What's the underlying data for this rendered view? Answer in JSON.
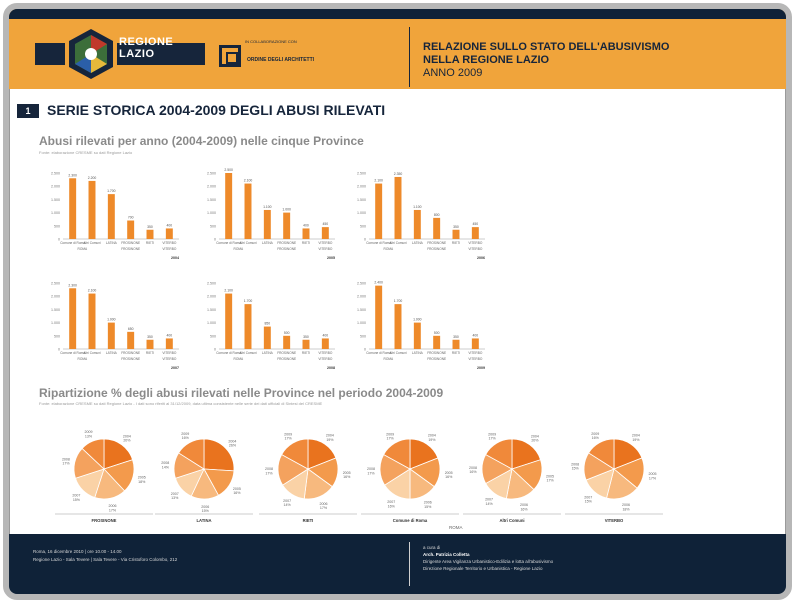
{
  "header": {
    "logo_text_line1": "REGIONE",
    "logo_text_line2": "LAZIO",
    "partner_logo_small": "IN COLLABORAZIONE CON",
    "partner_logo_name": "ORDINE DEGLI ARCHITETTI",
    "title_line1": "RELAZIONE SULLO STATO DELL'ABUSIVISMO",
    "title_line2": "NELLA REGIONE LAZIO",
    "year": "ANNO 2009"
  },
  "section": {
    "number": "1",
    "title": "SERIE STORICA 2004-2009 DEGLI ABUSI RILEVATI",
    "subtitle1": "Abusi rilevati per anno (2004-2009) nelle cinque Province",
    "source1": "Fonte: elaborazione CRESME su dati Regione Lazio",
    "subtitle2": "Ripartizione % degli abusi rilevati nelle Province nel periodo 2004-2009",
    "source2": "Fonte: elaborazione CRESME su dati Regione Lazio - I dati sono riferiti al 31/12/2009, data ultima consistente nelle serie dei dati ufficiali di Sintesi del CRESME"
  },
  "colors": {
    "accent": "#f0a43b",
    "bar": "#ee8a2a",
    "navy": "#0f2238",
    "pie": [
      "#e9731e",
      "#f39a4c",
      "#f7b97e",
      "#fad2a6",
      "#f4a25e",
      "#f0893a"
    ]
  },
  "chart_data": [
    {
      "type": "bar",
      "year": "2004",
      "categories": [
        "Comune di Roma",
        "Altri Comuni",
        "LATINA",
        "FROSINONE",
        "RIETI",
        "VITERBO"
      ],
      "values": [
        2300,
        2200,
        1700,
        700,
        350,
        400
      ],
      "ylim": [
        0,
        2500
      ],
      "group_labels": [
        "ROMA",
        "FROSINONE",
        "VITERBO"
      ]
    },
    {
      "type": "bar",
      "year": "2005",
      "categories": [
        "Comune di Roma",
        "Altri Comuni",
        "LATINA",
        "FROSINONE",
        "RIETI",
        "VITERBO"
      ],
      "values": [
        2500,
        2100,
        1100,
        1000,
        400,
        450
      ],
      "ylim": [
        0,
        2500
      ],
      "group_labels": [
        "ROMA",
        "FROSINONE",
        "VITERBO"
      ]
    },
    {
      "type": "bar",
      "year": "2006",
      "categories": [
        "Comune di Roma",
        "Altri Comuni",
        "LATINA",
        "FROSINONE",
        "RIETI",
        "VITERBO"
      ],
      "values": [
        2100,
        2350,
        1100,
        800,
        350,
        450
      ],
      "ylim": [
        0,
        2500
      ],
      "group_labels": [
        "ROMA",
        "FROSINONE",
        "VITERBO"
      ]
    },
    {
      "type": "bar",
      "year": "2007",
      "categories": [
        "Comune di Roma",
        "Altri Comuni",
        "LATINA",
        "FROSINONE",
        "RIETI",
        "VITERBO"
      ],
      "values": [
        2300,
        2100,
        1000,
        650,
        350,
        400
      ],
      "ylim": [
        0,
        2500
      ],
      "group_labels": [
        "ROMA",
        "FROSINONE",
        "VITERBO"
      ]
    },
    {
      "type": "bar",
      "year": "2008",
      "categories": [
        "Comune di Roma",
        "Altri Comuni",
        "LATINA",
        "FROSINONE",
        "RIETI",
        "VITERBO"
      ],
      "values": [
        2100,
        1700,
        850,
        500,
        350,
        400
      ],
      "ylim": [
        0,
        2500
      ],
      "group_labels": [
        "ROMA",
        "FROSINONE",
        "VITERBO"
      ]
    },
    {
      "type": "bar",
      "year": "2009",
      "categories": [
        "Comune di Roma",
        "Altri Comuni",
        "LATINA",
        "FROSINONE",
        "RIETI",
        "VITERBO"
      ],
      "values": [
        2400,
        1700,
        1000,
        500,
        350,
        400
      ],
      "ylim": [
        0,
        2500
      ],
      "group_labels": [
        "ROMA",
        "FROSINONE",
        "VITERBO"
      ]
    },
    {
      "type": "pie",
      "title": "FROSINONE",
      "categories": [
        "2004",
        "2005",
        "2006",
        "2007",
        "2008",
        "2009"
      ],
      "values": [
        20,
        18,
        17,
        15,
        17,
        13
      ]
    },
    {
      "type": "pie",
      "title": "LATINA",
      "categories": [
        "2004",
        "2005",
        "2006",
        "2007",
        "2008",
        "2009"
      ],
      "values": [
        26,
        16,
        15,
        13,
        14,
        16
      ]
    },
    {
      "type": "pie",
      "title": "RIETI",
      "categories": [
        "2004",
        "2005",
        "2006",
        "2007",
        "2008",
        "2009"
      ],
      "values": [
        19,
        16,
        17,
        14,
        17,
        17
      ]
    },
    {
      "type": "pie",
      "title": "Comune di Roma",
      "categories": [
        "2004",
        "2005",
        "2006",
        "2007",
        "2008",
        "2009"
      ],
      "values": [
        19,
        16,
        15,
        16,
        17,
        17
      ]
    },
    {
      "type": "pie",
      "title": "Altri Comuni",
      "categories": [
        "2004",
        "2005",
        "2006",
        "2007",
        "2008",
        "2009"
      ],
      "values": [
        20,
        17,
        16,
        14,
        16,
        17
      ]
    },
    {
      "type": "pie",
      "title": "VITERBO",
      "categories": [
        "2004",
        "2005",
        "2006",
        "2007",
        "2008",
        "2009"
      ],
      "values": [
        19,
        17,
        18,
        15,
        15,
        16
      ]
    }
  ],
  "pie_group_label": "ROMA",
  "footer": {
    "left_line1": "Roma, 16 dicembre 2010 | ore 10.00 - 14.00",
    "left_line2": "Regione Lazio - Sala Tevere | Sala Tevere - Via Cristoforo Colombo, 212",
    "right_line1": "a cura di",
    "right_name": "Arch. Patrizia Colletta",
    "right_line3": "Dirigente Area Vigilanza Urbanistico-Edilizia e lotta all'abusivismo",
    "right_line4": "Direzione Regionale Territorio e Urbanistica - Regione Lazio"
  }
}
